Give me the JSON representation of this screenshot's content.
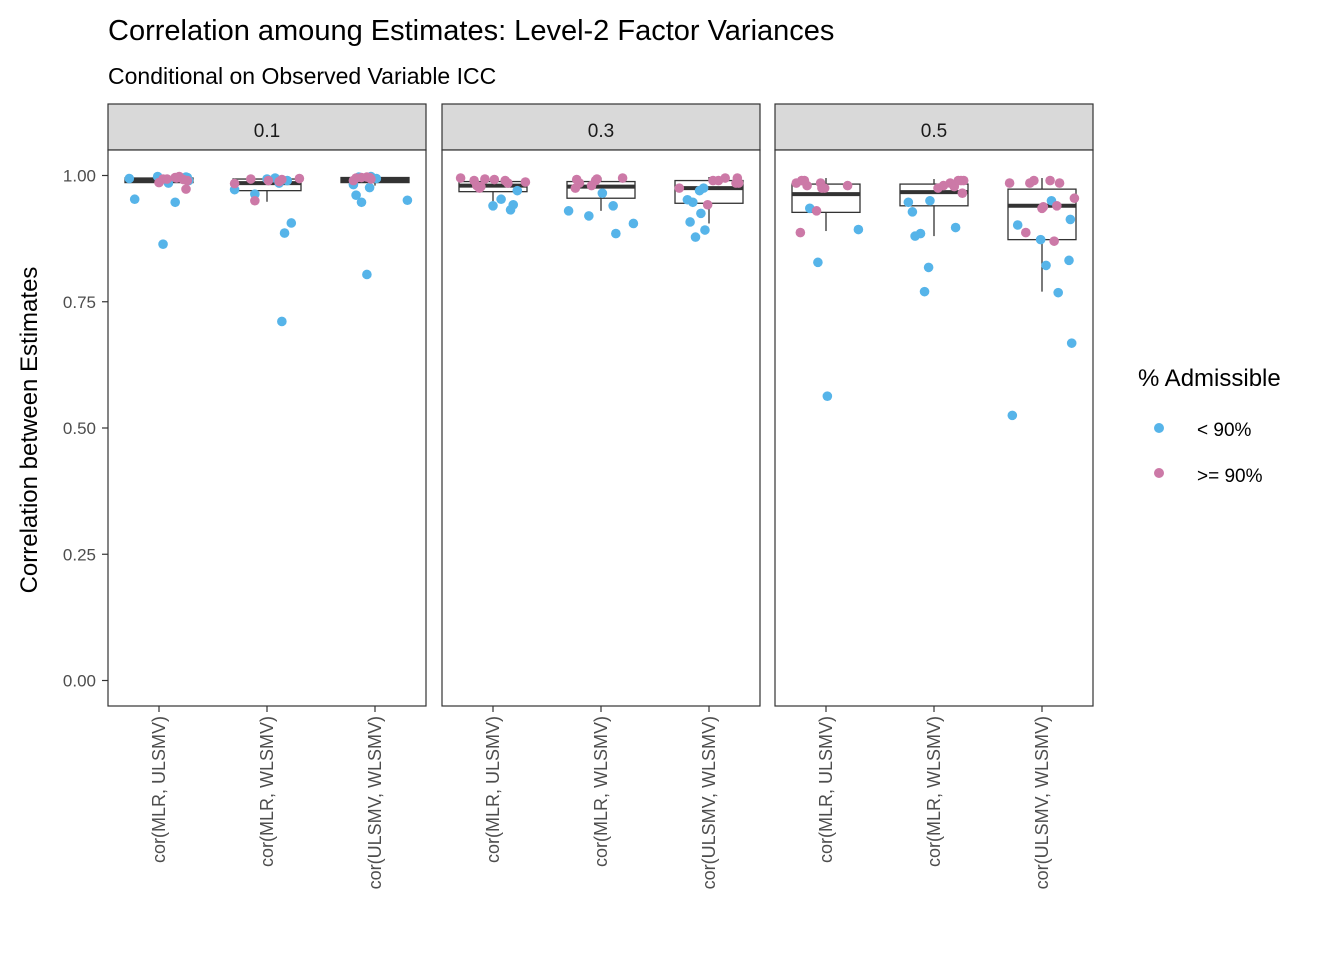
{
  "chart_data": {
    "type": "box",
    "title": "Correlation amoung Estimates: Level-2 Factor Variances",
    "subtitle": "Conditional on Observed Variable ICC",
    "ylabel": "Correlation between Estimates",
    "xlabel": "",
    "ylim": [
      -0.05,
      1.1
    ],
    "yticks": [
      "0.00",
      "0.25",
      "0.50",
      "0.75",
      "1.00"
    ],
    "grid": false,
    "legend": {
      "title": "% Admissible",
      "position": "right",
      "entries": [
        {
          "label": "< 90%",
          "color": "#56B4E9"
        },
        {
          "label": ">= 90%",
          "color": "#CC79A7"
        }
      ]
    },
    "categories": [
      "cor(MLR, ULSMV)",
      "cor(MLR, WLSMV)",
      "cor(ULSMV, WLSMV)"
    ],
    "facets": [
      {
        "label": "0.1",
        "boxes": [
          {
            "lower": 0.978,
            "q1": 0.986,
            "median": 0.991,
            "q3": 0.995,
            "upper": 0.999
          },
          {
            "lower": 0.948,
            "q1": 0.97,
            "median": 0.985,
            "q3": 0.993,
            "upper": 0.999
          },
          {
            "lower": 0.98,
            "q1": 0.986,
            "median": 0.991,
            "q3": 0.996,
            "upper": 0.999
          }
        ],
        "points": {
          "low": [
            [
              0,
              0.953
            ],
            [
              0,
              0.994
            ],
            [
              0,
              0.998
            ],
            [
              0,
              0.985
            ],
            [
              0,
              0.99
            ],
            [
              0,
              0.996
            ],
            [
              0,
              0.864
            ],
            [
              0,
              0.997
            ],
            [
              0,
              0.947
            ],
            [
              1,
              0.99
            ],
            [
              1,
              0.906
            ],
            [
              1,
              0.886
            ],
            [
              1,
              0.993
            ],
            [
              1,
              0.995
            ],
            [
              1,
              0.711
            ],
            [
              1,
              0.985
            ],
            [
              1,
              0.972
            ],
            [
              1,
              0.963
            ],
            [
              2,
              0.994
            ],
            [
              2,
              0.951
            ],
            [
              2,
              0.997
            ],
            [
              2,
              0.804
            ],
            [
              2,
              0.947
            ],
            [
              2,
              0.961
            ],
            [
              2,
              0.998
            ],
            [
              2,
              0.982
            ],
            [
              2,
              0.976
            ]
          ],
          "high": [
            [
              0,
              0.99
            ],
            [
              0,
              0.993
            ],
            [
              0,
              0.973
            ],
            [
              0,
              0.996
            ],
            [
              0,
              0.998
            ],
            [
              0,
              0.992
            ],
            [
              0,
              0.995
            ],
            [
              0,
              0.986
            ],
            [
              0,
              0.993
            ],
            [
              1,
              0.992
            ],
            [
              1,
              0.988
            ],
            [
              1,
              0.984
            ],
            [
              1,
              0.95
            ],
            [
              1,
              0.99
            ],
            [
              1,
              0.994
            ],
            [
              1,
              0.993
            ],
            [
              2,
              0.997
            ],
            [
              2,
              0.996
            ],
            [
              2,
              0.995
            ],
            [
              2,
              0.993
            ],
            [
              2,
              0.99
            ],
            [
              2,
              0.996
            ]
          ]
        }
      },
      {
        "label": "0.3",
        "boxes": [
          {
            "lower": 0.945,
            "q1": 0.968,
            "median": 0.98,
            "q3": 0.988,
            "upper": 0.996
          },
          {
            "lower": 0.93,
            "q1": 0.955,
            "median": 0.978,
            "q3": 0.988,
            "upper": 0.996
          },
          {
            "lower": 0.905,
            "q1": 0.945,
            "median": 0.975,
            "q3": 0.99,
            "upper": 0.997
          }
        ],
        "points": {
          "low": [
            [
              0,
              0.942
            ],
            [
              0,
              0.97
            ],
            [
              0,
              0.932
            ],
            [
              0,
              0.94
            ],
            [
              0,
              0.953
            ],
            [
              1,
              0.885
            ],
            [
              1,
              0.94
            ],
            [
              1,
              0.93
            ],
            [
              1,
              0.92
            ],
            [
              1,
              0.965
            ],
            [
              1,
              0.905
            ],
            [
              2,
              0.947
            ],
            [
              2,
              0.925
            ],
            [
              2,
              0.878
            ],
            [
              2,
              0.908
            ],
            [
              2,
              0.892
            ],
            [
              2,
              0.952
            ],
            [
              2,
              0.975
            ],
            [
              2,
              0.97
            ]
          ],
          "high": [
            [
              0,
              0.985
            ],
            [
              0,
              0.99
            ],
            [
              0,
              0.995
            ],
            [
              0,
              0.978
            ],
            [
              0,
              0.992
            ],
            [
              0,
              0.987
            ],
            [
              0,
              0.98
            ],
            [
              0,
              0.993
            ],
            [
              0,
              0.975
            ],
            [
              0,
              0.99
            ],
            [
              1,
              0.993
            ],
            [
              1,
              0.985
            ],
            [
              1,
              0.99
            ],
            [
              1,
              0.98
            ],
            [
              1,
              0.975
            ],
            [
              1,
              0.995
            ],
            [
              1,
              0.992
            ],
            [
              2,
              0.975
            ],
            [
              2,
              0.942
            ],
            [
              2,
              0.99
            ],
            [
              2,
              0.985
            ],
            [
              2,
              0.995
            ],
            [
              2,
              0.99
            ],
            [
              2,
              0.985
            ],
            [
              2,
              0.995
            ]
          ]
        }
      },
      {
        "label": "0.5",
        "boxes": [
          {
            "lower": 0.89,
            "q1": 0.927,
            "median": 0.963,
            "q3": 0.983,
            "upper": 0.995
          },
          {
            "lower": 0.88,
            "q1": 0.94,
            "median": 0.967,
            "q3": 0.983,
            "upper": 0.993
          },
          {
            "lower": 0.77,
            "q1": 0.873,
            "median": 0.94,
            "q3": 0.973,
            "upper": 0.995
          }
        ],
        "points": {
          "low": [
            [
              0,
              0.563
            ],
            [
              0,
              0.893
            ],
            [
              0,
              0.935
            ],
            [
              0,
              0.828
            ],
            [
              1,
              0.885
            ],
            [
              1,
              0.88
            ],
            [
              1,
              0.95
            ],
            [
              1,
              0.928
            ],
            [
              1,
              0.818
            ],
            [
              1,
              0.77
            ],
            [
              1,
              0.947
            ],
            [
              1,
              0.897
            ],
            [
              2,
              0.902
            ],
            [
              2,
              0.525
            ],
            [
              2,
              0.873
            ],
            [
              2,
              0.95
            ],
            [
              2,
              0.668
            ],
            [
              2,
              0.913
            ],
            [
              2,
              0.822
            ],
            [
              2,
              0.832
            ],
            [
              2,
              0.768
            ]
          ],
          "high": [
            [
              0,
              0.98
            ],
            [
              0,
              0.975
            ],
            [
              0,
              0.99
            ],
            [
              0,
              0.985
            ],
            [
              0,
              0.93
            ],
            [
              0,
              0.887
            ],
            [
              0,
              0.98
            ],
            [
              0,
              0.99
            ],
            [
              0,
              0.985
            ],
            [
              0,
              0.975
            ],
            [
              1,
              0.98
            ],
            [
              1,
              0.99
            ],
            [
              1,
              0.965
            ],
            [
              1,
              0.975
            ],
            [
              1,
              0.99
            ],
            [
              1,
              0.985
            ],
            [
              1,
              0.978
            ],
            [
              1,
              0.99
            ],
            [
              2,
              0.985
            ],
            [
              2,
              0.935
            ],
            [
              2,
              0.99
            ],
            [
              2,
              0.94
            ],
            [
              2,
              0.87
            ],
            [
              2,
              0.985
            ],
            [
              2,
              0.985
            ],
            [
              2,
              0.938
            ],
            [
              2,
              0.955
            ],
            [
              2,
              0.887
            ],
            [
              2,
              0.99
            ]
          ]
        }
      }
    ]
  }
}
